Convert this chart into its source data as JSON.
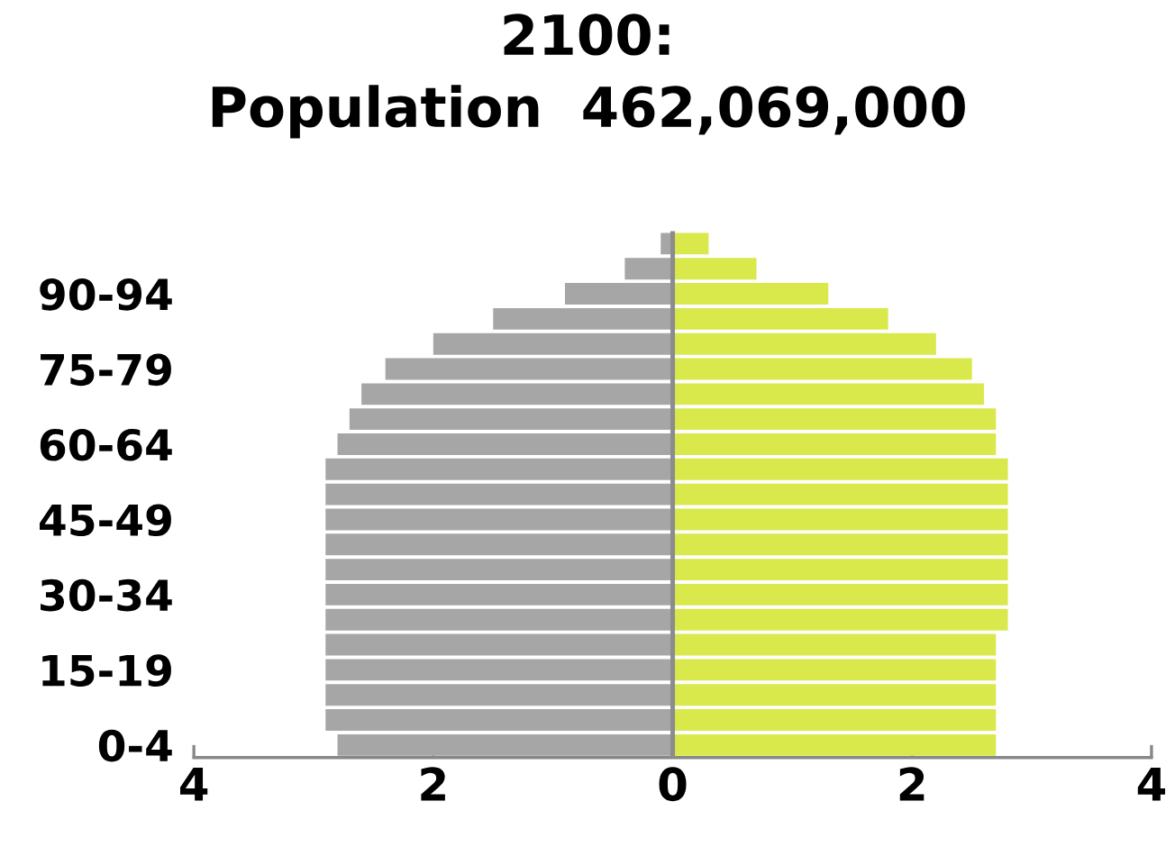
{
  "chart_data": {
    "type": "bar",
    "orientation": "horizontal",
    "stacked": true,
    "title": "2100:\nPopulation  462,069,000",
    "categories": [
      null,
      null,
      "90-94",
      null,
      null,
      "75-79",
      null,
      null,
      "60-64",
      null,
      null,
      "45-49",
      null,
      null,
      "30-34",
      null,
      null,
      "15-19",
      null,
      null,
      "0-4"
    ],
    "series": [
      {
        "color": "#a6a6a6",
        "values": [
          -0.1,
          -0.4,
          -0.9,
          -1.5,
          -2.0,
          -2.4,
          -2.6,
          -2.7,
          -2.8,
          -2.9,
          -2.9,
          -2.9,
          -2.9,
          -2.9,
          -2.9,
          -2.9,
          -2.9,
          -2.9,
          -2.9,
          -2.9,
          -2.8
        ]
      },
      {
        "color": "#d9e84a",
        "values": [
          0.3,
          0.7,
          1.3,
          1.8,
          2.2,
          2.5,
          2.6,
          2.7,
          2.7,
          2.8,
          2.8,
          2.8,
          2.8,
          2.8,
          2.8,
          2.8,
          2.7,
          2.7,
          2.7,
          2.7,
          2.7
        ]
      }
    ],
    "xlim": [
      -4,
      4
    ],
    "xticks": [
      {
        "value": -4,
        "label": "4"
      },
      {
        "value": -2,
        "label": "2"
      },
      0,
      2,
      4
    ],
    "ref_lines": [
      {
        "axis": "x",
        "value": 0,
        "color": "#8c8c8c"
      }
    ],
    "grid": false
  }
}
